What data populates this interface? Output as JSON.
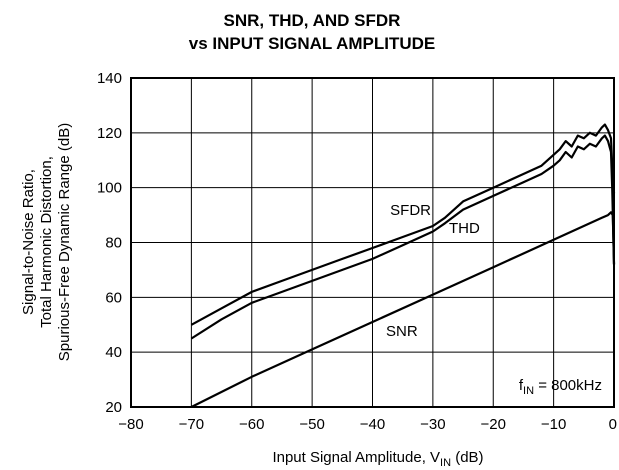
{
  "chart_data": {
    "type": "line",
    "title": [
      "SNR, THD, AND SFDR",
      "vs INPUT SIGNAL AMPLITUDE"
    ],
    "xlabel": "Input Signal Amplitude, V",
    "xlabel_sub": "IN",
    "xlabel_unit": "(dB)",
    "ylabel": [
      "Signal-to-Noise Ratio,",
      "Total Harmonic Distortion,",
      "Spurious-Free Dynamic Range (dB)"
    ],
    "xlim": [
      -80,
      0
    ],
    "ylim": [
      20,
      140
    ],
    "x_ticks": [
      -80,
      -70,
      -60,
      -50,
      -40,
      -30,
      -20,
      -10,
      0
    ],
    "x_tick_labels": [
      "−80",
      "−70",
      "−60",
      "−50",
      "−40",
      "−30",
      "−20",
      "−10",
      "0"
    ],
    "y_ticks": [
      20,
      40,
      60,
      80,
      100,
      120,
      140
    ],
    "y_tick_labels": [
      "20",
      "40",
      "60",
      "80",
      "100",
      "120",
      "140"
    ],
    "grid": true,
    "annotation": {
      "prefix": "f",
      "sub": "IN",
      "suffix": " = 800kHz"
    },
    "series": [
      {
        "name": "SFDR",
        "x": [
          -70,
          -65,
          -60,
          -55,
          -50,
          -45,
          -40,
          -35,
          -30,
          -28,
          -25,
          -20,
          -15,
          -12,
          -10,
          -9,
          -8,
          -7,
          -6,
          -5,
          -4,
          -3,
          -2,
          -1.5,
          -1,
          -0.5,
          -0.3,
          0
        ],
        "y": [
          50,
          56,
          62,
          66,
          70,
          74,
          78,
          82,
          86,
          89,
          95,
          100,
          105,
          108,
          112,
          114,
          117,
          115,
          119,
          118,
          120,
          119,
          122,
          123,
          121,
          118,
          108,
          98
        ]
      },
      {
        "name": "THD",
        "x": [
          -70,
          -65,
          -60,
          -55,
          -50,
          -45,
          -40,
          -35,
          -30,
          -28,
          -25,
          -20,
          -15,
          -12,
          -10,
          -9,
          -8,
          -7,
          -6,
          -5,
          -4,
          -3,
          -2,
          -1.5,
          -1,
          -0.5,
          -0.3,
          0
        ],
        "y": [
          45,
          52,
          58,
          62,
          66,
          70,
          74,
          79,
          84,
          87,
          92,
          97,
          102,
          105,
          108,
          110,
          113,
          111,
          115,
          114,
          116,
          115,
          118,
          119,
          117,
          113,
          100,
          72
        ]
      },
      {
        "name": "SNR",
        "x": [
          -70,
          -60,
          -50,
          -40,
          -30,
          -20,
          -10,
          -5,
          -2,
          -1,
          -0.5,
          -0.2,
          0
        ],
        "y": [
          20,
          31,
          41,
          51,
          61,
          71,
          81,
          86,
          89,
          90,
          91,
          90,
          72
        ]
      }
    ]
  }
}
